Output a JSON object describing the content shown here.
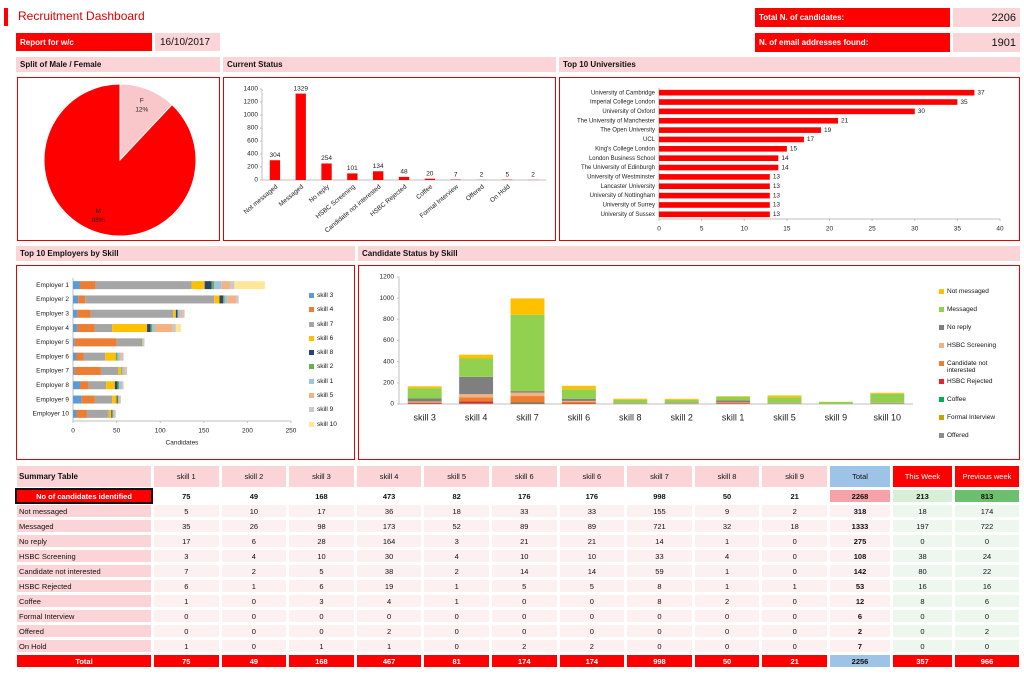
{
  "header": {
    "title": "Recruitment Dashboard",
    "report_label": "Report for w/c",
    "report_date": "16/10/2017",
    "total_label": "Total N. of candidates:",
    "total_value": "2206",
    "email_label": "N. of email addresses found:",
    "email_value": "1901"
  },
  "chart_data": [
    {
      "type": "pie",
      "title": "Split of Male / Female",
      "categories": [
        "F",
        "M"
      ],
      "values": [
        12,
        88
      ],
      "value_labels": [
        "12%",
        "88%"
      ],
      "colors": [
        "#f9c6ca",
        "#ff0000"
      ]
    },
    {
      "type": "bar",
      "title": "Current Status",
      "categories": [
        "Not messaged",
        "Messaged",
        "No reply",
        "HSBC Screening",
        "Candidate not interested",
        "HSBC Rejected",
        "Coffee",
        "Formal Interview",
        "Offered",
        "On Hold",
        null
      ],
      "values": [
        304,
        1329,
        254,
        101,
        134,
        48,
        20,
        7,
        2,
        5,
        2
      ],
      "color": "#ff0000",
      "ylim": [
        0,
        1400
      ],
      "yticks": [
        0,
        200,
        400,
        600,
        800,
        1000,
        1200,
        1400
      ]
    },
    {
      "type": "barh",
      "title": "Top 10 Universities",
      "categories": [
        "University of Cambridge",
        "Imperial College London",
        "University of Oxford",
        "The University of Manchester",
        "The Open University",
        "UCL",
        "King's College London",
        "London Business School",
        "The University of Edinburgh",
        "University of Westminster",
        "Lancaster University",
        "University of Nottingham",
        "University of Surrey",
        "University of Sussex"
      ],
      "values": [
        37,
        35,
        30,
        21,
        19,
        17,
        15,
        14,
        14,
        13,
        13,
        13,
        13,
        13
      ],
      "color": "#ff0000",
      "xlim": [
        0,
        40
      ],
      "xticks": [
        0,
        5,
        10,
        15,
        20,
        25,
        30,
        35,
        40
      ]
    },
    {
      "type": "stacked-barh",
      "title": "Top 10 Employers by Skill",
      "xlabel": "Candidates",
      "categories": [
        "Employer 1",
        "Employer 2",
        "Employer 3",
        "Employer 4",
        "Employer 5",
        "Employer 6",
        "Employer 7",
        "Employer 8",
        "Employer 9",
        "Employer 10"
      ],
      "xlim": [
        0,
        250
      ],
      "xticks": [
        0,
        50,
        100,
        150,
        200,
        250
      ],
      "series": [
        {
          "name": "skill 3",
          "color": "#5b9bd5",
          "values": [
            8,
            6,
            5,
            5,
            2,
            4,
            2,
            8,
            10,
            4
          ]
        },
        {
          "name": "skill 4",
          "color": "#ed7d31",
          "values": [
            18,
            8,
            15,
            20,
            48,
            8,
            30,
            10,
            15,
            12
          ]
        },
        {
          "name": "skill 7",
          "color": "#a5a5a5",
          "values": [
            110,
            148,
            95,
            20,
            28,
            25,
            20,
            20,
            20,
            25
          ]
        },
        {
          "name": "skill 6",
          "color": "#ffc000",
          "values": [
            15,
            6,
            3,
            40,
            0,
            12,
            3,
            10,
            5,
            3
          ]
        },
        {
          "name": "skill 8",
          "color": "#264478",
          "values": [
            8,
            4,
            2,
            4,
            0,
            0,
            0,
            3,
            1,
            1
          ]
        },
        {
          "name": "skill 2",
          "color": "#70ad47",
          "values": [
            3,
            2,
            0,
            2,
            1,
            2,
            1,
            2,
            1,
            1
          ]
        },
        {
          "name": "skill 1",
          "color": "#9dc3e6",
          "values": [
            8,
            3,
            3,
            3,
            1,
            3,
            2,
            3,
            1,
            1
          ]
        },
        {
          "name": "skill 5",
          "color": "#f4b183",
          "values": [
            10,
            10,
            3,
            20,
            1,
            2,
            2,
            1,
            1,
            1
          ]
        },
        {
          "name": "skill 9",
          "color": "#c9c9c9",
          "values": [
            5,
            3,
            2,
            4,
            1,
            2,
            2,
            1,
            1,
            1
          ]
        },
        {
          "name": "skill 10",
          "color": "#ffe699",
          "values": [
            35,
            0,
            0,
            6,
            0,
            0,
            0,
            0,
            0,
            0
          ]
        }
      ]
    },
    {
      "type": "stacked-bar",
      "title": "Candidate Status by Skill",
      "categories": [
        "skill 3",
        "skill 4",
        "skill 7",
        "skill 6",
        "skill 8",
        "skill 2",
        "skill 1",
        "skill 5",
        "skill 9",
        "skill 10"
      ],
      "ylim": [
        0,
        1200
      ],
      "yticks": [
        0,
        200,
        400,
        600,
        800,
        1000,
        1200
      ],
      "series": [
        {
          "name": "Not messaged",
          "color": "#ffc000",
          "values": [
            17,
            36,
            155,
            33,
            9,
            10,
            5,
            18,
            2,
            10
          ]
        },
        {
          "name": "Messaged",
          "color": "#92d050",
          "values": [
            98,
            173,
            721,
            89,
            32,
            26,
            35,
            52,
            18,
            85
          ]
        },
        {
          "name": "No reply",
          "color": "#7f7f7f",
          "values": [
            28,
            164,
            14,
            21,
            1,
            6,
            17,
            3,
            0,
            5
          ]
        },
        {
          "name": "HSBC Screening",
          "color": "#f4b183",
          "values": [
            10,
            30,
            33,
            10,
            4,
            4,
            3,
            4,
            0,
            3
          ]
        },
        {
          "name": "Candidate not interested",
          "color": "#ed7d31",
          "values": [
            5,
            38,
            59,
            14,
            1,
            2,
            7,
            2,
            0,
            2
          ]
        },
        {
          "name": "HSBC Rejected",
          "color": "#e8232a",
          "values": [
            6,
            19,
            8,
            5,
            1,
            1,
            6,
            1,
            1,
            1
          ]
        },
        {
          "name": "Coffee",
          "color": "#00b050",
          "values": [
            3,
            4,
            8,
            0,
            2,
            0,
            1,
            1,
            0,
            0
          ]
        },
        {
          "name": "Formal Interview",
          "color": "#c9a400",
          "values": [
            0,
            0,
            0,
            0,
            0,
            0,
            0,
            0,
            0,
            0
          ]
        },
        {
          "name": "Offered",
          "color": "#8c8c8c",
          "values": [
            0,
            2,
            0,
            0,
            0,
            0,
            0,
            0,
            0,
            0
          ]
        }
      ]
    }
  ],
  "table": {
    "header": [
      "Summary Table",
      "skill 1",
      "skill 2",
      "skill 3",
      "skill 4",
      "skill 5",
      "skill 6",
      "skill 6",
      "skill 7",
      "skill 8",
      "skill 9",
      "Total",
      "This Week",
      "Previous week"
    ],
    "rows": [
      [
        "No of candidates identified",
        75,
        49,
        168,
        473,
        82,
        176,
        176,
        998,
        50,
        21,
        2268,
        213,
        813
      ],
      [
        "Not messaged",
        5,
        10,
        17,
        36,
        18,
        33,
        33,
        155,
        9,
        2,
        318,
        18,
        174
      ],
      [
        "Messaged",
        35,
        26,
        98,
        173,
        52,
        89,
        89,
        721,
        32,
        18,
        1333,
        197,
        722
      ],
      [
        "No reply",
        17,
        6,
        28,
        164,
        3,
        21,
        21,
        14,
        1,
        0,
        275,
        0,
        0
      ],
      [
        "HSBC Screening",
        3,
        4,
        10,
        30,
        4,
        10,
        10,
        33,
        4,
        0,
        108,
        38,
        24
      ],
      [
        "Candidate not interested",
        7,
        2,
        5,
        38,
        2,
        14,
        14,
        59,
        1,
        0,
        142,
        80,
        22
      ],
      [
        "HSBC Rejected",
        6,
        1,
        6,
        19,
        1,
        5,
        5,
        8,
        1,
        1,
        53,
        16,
        16
      ],
      [
        "Coffee",
        1,
        0,
        3,
        4,
        1,
        0,
        0,
        8,
        2,
        0,
        12,
        8,
        6
      ],
      [
        "Formal Interview",
        0,
        0,
        0,
        0,
        0,
        0,
        0,
        0,
        0,
        0,
        6,
        0,
        0
      ],
      [
        "Offered",
        0,
        0,
        0,
        2,
        0,
        0,
        0,
        0,
        0,
        0,
        2,
        0,
        2
      ],
      [
        "On Hold",
        1,
        0,
        1,
        1,
        0,
        2,
        2,
        0,
        0,
        0,
        7,
        0,
        0
      ],
      [
        "Total",
        75,
        49,
        168,
        467,
        81,
        174,
        174,
        998,
        50,
        21,
        2256,
        357,
        966
      ]
    ]
  }
}
